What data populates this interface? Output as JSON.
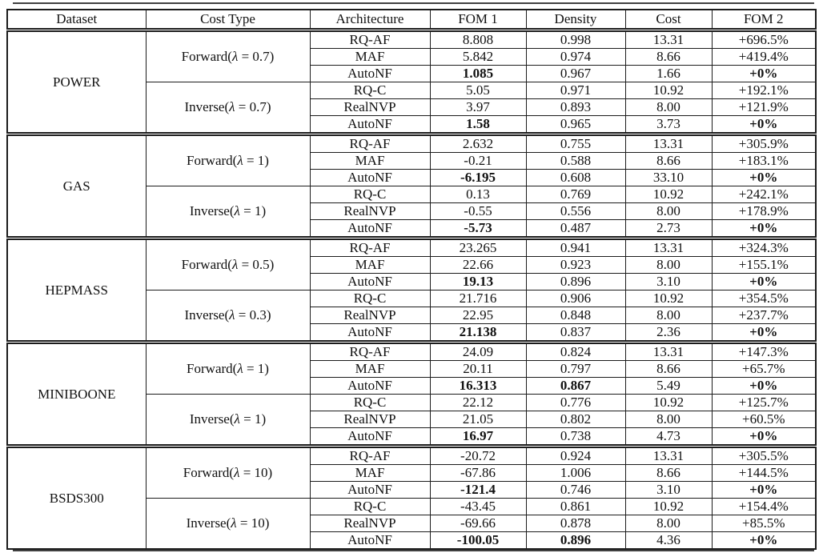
{
  "table": {
    "headers": [
      "Dataset",
      "Cost Type",
      "Architecture",
      "FOM 1",
      "Density",
      "Cost",
      "FOM 2"
    ],
    "blocks": [
      {
        "dataset": "POWER",
        "groups": [
          {
            "cost_type": "Forward(λ = 0.7)",
            "rows": [
              {
                "values": [
                  "RQ-AF",
                  "8.808",
                  "0.998",
                  "13.31",
                  "+696.5%"
                ],
                "bold": []
              },
              {
                "values": [
                  "MAF",
                  "5.842",
                  "0.974",
                  "8.66",
                  "+419.4%"
                ],
                "bold": []
              },
              {
                "values": [
                  "AutoNF",
                  "1.085",
                  "0.967",
                  "1.66",
                  "+0%"
                ],
                "bold": [
                  1,
                  4
                ]
              }
            ]
          },
          {
            "cost_type": "Inverse(λ = 0.7)",
            "rows": [
              {
                "values": [
                  "RQ-C",
                  "5.05",
                  "0.971",
                  "10.92",
                  "+192.1%"
                ],
                "bold": []
              },
              {
                "values": [
                  "RealNVP",
                  "3.97",
                  "0.893",
                  "8.00",
                  "+121.9%"
                ],
                "bold": []
              },
              {
                "values": [
                  "AutoNF",
                  "1.58",
                  "0.965",
                  "3.73",
                  "+0%"
                ],
                "bold": [
                  1,
                  4
                ]
              }
            ]
          }
        ]
      },
      {
        "dataset": "GAS",
        "groups": [
          {
            "cost_type": "Forward(λ = 1)",
            "rows": [
              {
                "values": [
                  "RQ-AF",
                  "2.632",
                  "0.755",
                  "13.31",
                  "+305.9%"
                ],
                "bold": []
              },
              {
                "values": [
                  "MAF",
                  "-0.21",
                  "0.588",
                  "8.66",
                  "+183.1%"
                ],
                "bold": []
              },
              {
                "values": [
                  "AutoNF",
                  "-6.195",
                  "0.608",
                  "33.10",
                  "+0%"
                ],
                "bold": [
                  1,
                  4
                ]
              }
            ]
          },
          {
            "cost_type": "Inverse(λ = 1)",
            "rows": [
              {
                "values": [
                  "RQ-C",
                  "0.13",
                  "0.769",
                  "10.92",
                  "+242.1%"
                ],
                "bold": []
              },
              {
                "values": [
                  "RealNVP",
                  "-0.55",
                  "0.556",
                  "8.00",
                  "+178.9%"
                ],
                "bold": []
              },
              {
                "values": [
                  "AutoNF",
                  "-5.73",
                  "0.487",
                  "2.73",
                  "+0%"
                ],
                "bold": [
                  1,
                  4
                ]
              }
            ]
          }
        ]
      },
      {
        "dataset": "HEPMASS",
        "groups": [
          {
            "cost_type": "Forward(λ = 0.5)",
            "rows": [
              {
                "values": [
                  "RQ-AF",
                  "23.265",
                  "0.941",
                  "13.31",
                  "+324.3%"
                ],
                "bold": []
              },
              {
                "values": [
                  "MAF",
                  "22.66",
                  "0.923",
                  "8.00",
                  "+155.1%"
                ],
                "bold": []
              },
              {
                "values": [
                  "AutoNF",
                  "19.13",
                  "0.896",
                  "3.10",
                  "+0%"
                ],
                "bold": [
                  1,
                  4
                ]
              }
            ]
          },
          {
            "cost_type": "Inverse(λ = 0.3)",
            "rows": [
              {
                "values": [
                  "RQ-C",
                  "21.716",
                  "0.906",
                  "10.92",
                  "+354.5%"
                ],
                "bold": []
              },
              {
                "values": [
                  "RealNVP",
                  "22.95",
                  "0.848",
                  "8.00",
                  "+237.7%"
                ],
                "bold": []
              },
              {
                "values": [
                  "AutoNF",
                  "21.138",
                  "0.837",
                  "2.36",
                  "+0%"
                ],
                "bold": [
                  1,
                  4
                ]
              }
            ]
          }
        ]
      },
      {
        "dataset": "MINIBOONE",
        "groups": [
          {
            "cost_type": "Forward(λ = 1)",
            "rows": [
              {
                "values": [
                  "RQ-AF",
                  "24.09",
                  "0.824",
                  "13.31",
                  "+147.3%"
                ],
                "bold": []
              },
              {
                "values": [
                  "MAF",
                  "20.11",
                  "0.797",
                  "8.66",
                  "+65.7%"
                ],
                "bold": []
              },
              {
                "values": [
                  "AutoNF",
                  "16.313",
                  "0.867",
                  "5.49",
                  "+0%"
                ],
                "bold": [
                  1,
                  2,
                  4
                ]
              }
            ]
          },
          {
            "cost_type": "Inverse(λ = 1)",
            "rows": [
              {
                "values": [
                  "RQ-C",
                  "22.12",
                  "0.776",
                  "10.92",
                  "+125.7%"
                ],
                "bold": []
              },
              {
                "values": [
                  "RealNVP",
                  "21.05",
                  "0.802",
                  "8.00",
                  "+60.5%"
                ],
                "bold": []
              },
              {
                "values": [
                  "AutoNF",
                  "16.97",
                  "0.738",
                  "4.73",
                  "+0%"
                ],
                "bold": [
                  1,
                  4
                ]
              }
            ]
          }
        ]
      },
      {
        "dataset": "BSDS300",
        "groups": [
          {
            "cost_type": "Forward(λ = 10)",
            "rows": [
              {
                "values": [
                  "RQ-AF",
                  "-20.72",
                  "0.924",
                  "13.31",
                  "+305.5%"
                ],
                "bold": []
              },
              {
                "values": [
                  "MAF",
                  "-67.86",
                  "1.006",
                  "8.66",
                  "+144.5%"
                ],
                "bold": []
              },
              {
                "values": [
                  "AutoNF",
                  "-121.4",
                  "0.746",
                  "3.10",
                  "+0%"
                ],
                "bold": [
                  1,
                  4
                ]
              }
            ]
          },
          {
            "cost_type": "Inverse(λ = 10)",
            "rows": [
              {
                "values": [
                  "RQ-C",
                  "-43.45",
                  "0.861",
                  "10.92",
                  "+154.4%"
                ],
                "bold": []
              },
              {
                "values": [
                  "RealNVP",
                  "-69.66",
                  "0.878",
                  "8.00",
                  "+85.5%"
                ],
                "bold": []
              },
              {
                "values": [
                  "AutoNF",
                  "-100.05",
                  "0.896",
                  "4.36",
                  "+0%"
                ],
                "bold": [
                  1,
                  2,
                  4
                ]
              }
            ]
          }
        ]
      }
    ]
  },
  "colors": {
    "border": "#1c1c1c",
    "text": "#111111",
    "background": "#ffffff"
  }
}
